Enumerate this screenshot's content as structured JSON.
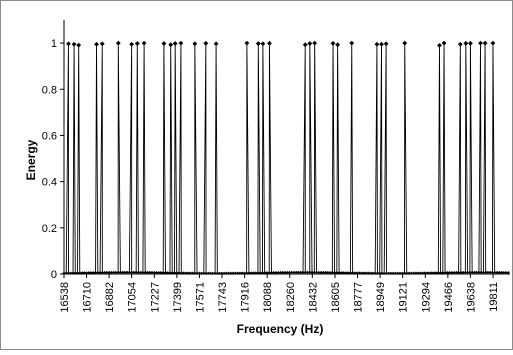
{
  "chart_data": {
    "type": "line",
    "title": "",
    "xlabel": "Frequency (Hz)",
    "ylabel": "Energy",
    "ylim": [
      0,
      1.1
    ],
    "yticks": [
      "0",
      "0.2",
      "0.4",
      "0.6",
      "0.8",
      "1"
    ],
    "xticks": [
      "16538",
      "16710",
      "16882",
      "17054",
      "17227",
      "17399",
      "17571",
      "17743",
      "17916",
      "18088",
      "18260",
      "18432",
      "18605",
      "18777",
      "18949",
      "19121",
      "19294",
      "19466",
      "19638",
      "19811"
    ],
    "grid": false,
    "legend": "none",
    "marker": "diamond",
    "line_color": "#000000",
    "x_range": [
      16538,
      19940
    ],
    "series": [
      {
        "peaks": [
          {
            "x": 16572,
            "y": 0.997
          },
          {
            "x": 16615,
            "y": 0.995
          },
          {
            "x": 16650,
            "y": 0.991
          },
          {
            "x": 16786,
            "y": 0.995
          },
          {
            "x": 16830,
            "y": 0.997
          },
          {
            "x": 16952,
            "y": 1.0
          },
          {
            "x": 17054,
            "y": 0.995
          },
          {
            "x": 17097,
            "y": 0.998
          },
          {
            "x": 17149,
            "y": 1.0
          },
          {
            "x": 17300,
            "y": 0.998
          },
          {
            "x": 17352,
            "y": 0.993
          },
          {
            "x": 17386,
            "y": 0.998
          },
          {
            "x": 17430,
            "y": 1.0
          },
          {
            "x": 17536,
            "y": 0.997
          },
          {
            "x": 17620,
            "y": 0.999
          },
          {
            "x": 17698,
            "y": 0.997
          },
          {
            "x": 17933,
            "y": 1.0
          },
          {
            "x": 18020,
            "y": 0.998
          },
          {
            "x": 18055,
            "y": 0.997
          },
          {
            "x": 18105,
            "y": 0.999
          },
          {
            "x": 18378,
            "y": 0.993
          },
          {
            "x": 18413,
            "y": 0.998
          },
          {
            "x": 18450,
            "y": 1.0
          },
          {
            "x": 18590,
            "y": 0.999
          },
          {
            "x": 18625,
            "y": 0.993
          },
          {
            "x": 18733,
            "y": 1.0
          },
          {
            "x": 18925,
            "y": 0.995
          },
          {
            "x": 18960,
            "y": 0.995
          },
          {
            "x": 18995,
            "y": 0.997
          },
          {
            "x": 19137,
            "y": 1.0
          },
          {
            "x": 19402,
            "y": 0.99
          },
          {
            "x": 19437,
            "y": 1.0
          },
          {
            "x": 19561,
            "y": 0.995
          },
          {
            "x": 19603,
            "y": 0.999
          },
          {
            "x": 19638,
            "y": 0.999
          },
          {
            "x": 19715,
            "y": 1.0
          },
          {
            "x": 19750,
            "y": 1.0
          },
          {
            "x": 19810,
            "y": 1.0
          }
        ],
        "baseline_y": 0.003
      }
    ]
  }
}
